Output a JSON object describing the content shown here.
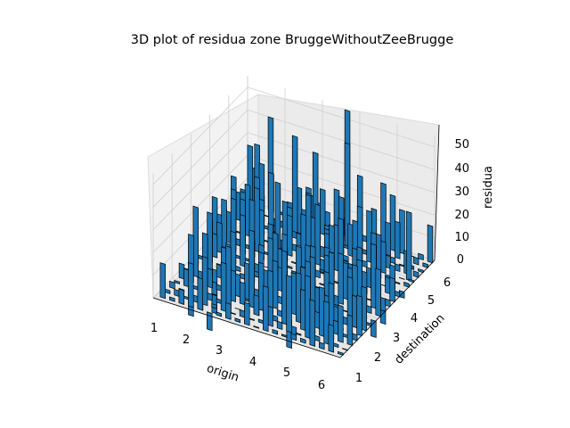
{
  "chart_data": {
    "type": "bar3d",
    "title": "3D plot of residua zone BruggeWithoutZeeBrugge",
    "xlabel": "origin",
    "ylabel": "destination",
    "zlabel": "residua",
    "xticks": [
      "1",
      "2",
      "3",
      "4",
      "5",
      "6"
    ],
    "yticks": [
      "1",
      "2",
      "3",
      "4",
      "5",
      "6"
    ],
    "zticks": [
      "0",
      "10",
      "20",
      "30",
      "40",
      "50"
    ],
    "xlim": [
      1,
      6
    ],
    "ylim": [
      1,
      6
    ],
    "zlim": [
      0,
      55
    ],
    "grid": true,
    "bar_color": "#1f77b4",
    "edge_color": "#000000",
    "bar_grid_per_axis": 20,
    "notable_bars": [
      {
        "origin": 3.7,
        "destination": 5.8,
        "residua": 56
      },
      {
        "origin": 3.9,
        "destination": 5.4,
        "residua": 46
      },
      {
        "origin": 2.6,
        "destination": 5.2,
        "residua": 44
      },
      {
        "origin": 1.6,
        "destination": 5.9,
        "residua": 41
      },
      {
        "origin": 3.3,
        "destination": 4.9,
        "residua": 43
      },
      {
        "origin": 5.8,
        "destination": 4.9,
        "residua": 30
      },
      {
        "origin": 1.2,
        "destination": 5.6,
        "residua": 29
      },
      {
        "origin": 2.9,
        "destination": 3.7,
        "residua": 38
      }
    ]
  }
}
